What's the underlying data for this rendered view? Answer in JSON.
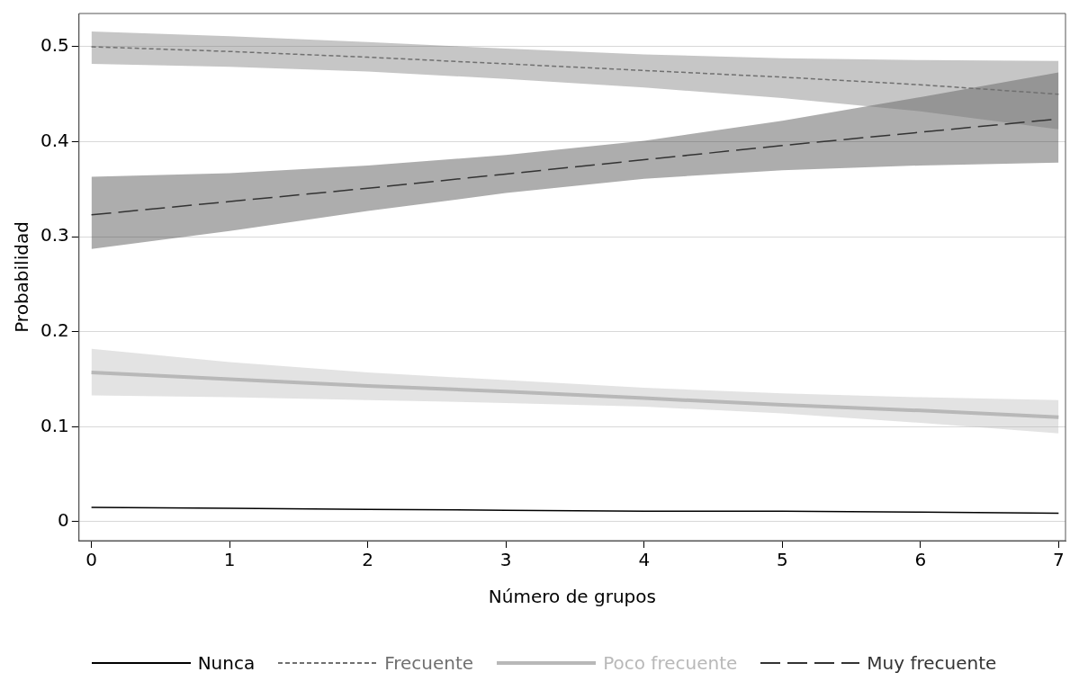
{
  "chart_data": {
    "type": "line",
    "xlabel": "Número de grupos",
    "ylabel": "Probabilidad",
    "x": [
      0,
      1,
      2,
      3,
      4,
      5,
      6,
      7
    ],
    "series": [
      {
        "name": "Nunca",
        "color": "#000000",
        "line_style": "solid",
        "values": [
          0.015,
          0.014,
          0.013,
          0.012,
          0.011,
          0.011,
          0.01,
          0.009
        ]
      },
      {
        "name": "Frecuente",
        "color": "#707070",
        "line_style": "dotted",
        "values": [
          0.5,
          0.495,
          0.489,
          0.482,
          0.475,
          0.468,
          0.46,
          0.45
        ],
        "lower": [
          0.482,
          0.479,
          0.474,
          0.466,
          0.457,
          0.446,
          0.432,
          0.413
        ],
        "upper": [
          0.516,
          0.511,
          0.505,
          0.498,
          0.492,
          0.488,
          0.486,
          0.485
        ]
      },
      {
        "name": "Poco frecuente",
        "color": "#b8b8b8",
        "line_style": "solid",
        "values": [
          0.157,
          0.15,
          0.143,
          0.137,
          0.13,
          0.123,
          0.117,
          0.11
        ],
        "lower": [
          0.133,
          0.131,
          0.128,
          0.125,
          0.121,
          0.114,
          0.104,
          0.093
        ],
        "upper": [
          0.182,
          0.168,
          0.157,
          0.149,
          0.141,
          0.135,
          0.131,
          0.128
        ]
      },
      {
        "name": "Muy frecuente",
        "color": "#333333",
        "line_style": "dashed",
        "values": [
          0.323,
          0.337,
          0.351,
          0.366,
          0.381,
          0.396,
          0.41,
          0.424
        ],
        "lower": [
          0.287,
          0.306,
          0.327,
          0.346,
          0.361,
          0.37,
          0.375,
          0.378
        ],
        "upper": [
          0.363,
          0.367,
          0.375,
          0.386,
          0.401,
          0.422,
          0.447,
          0.473
        ]
      }
    ],
    "xlim": [
      -0.09,
      7.05
    ],
    "xticks": [
      0,
      1,
      2,
      3,
      4,
      5,
      6,
      7
    ],
    "ylim": [
      -0.02,
      0.535
    ],
    "yticks": [
      0,
      0.1,
      0.2,
      0.3,
      0.4,
      0.5
    ],
    "grid": "y",
    "legend": "bottom",
    "marker": "none"
  }
}
